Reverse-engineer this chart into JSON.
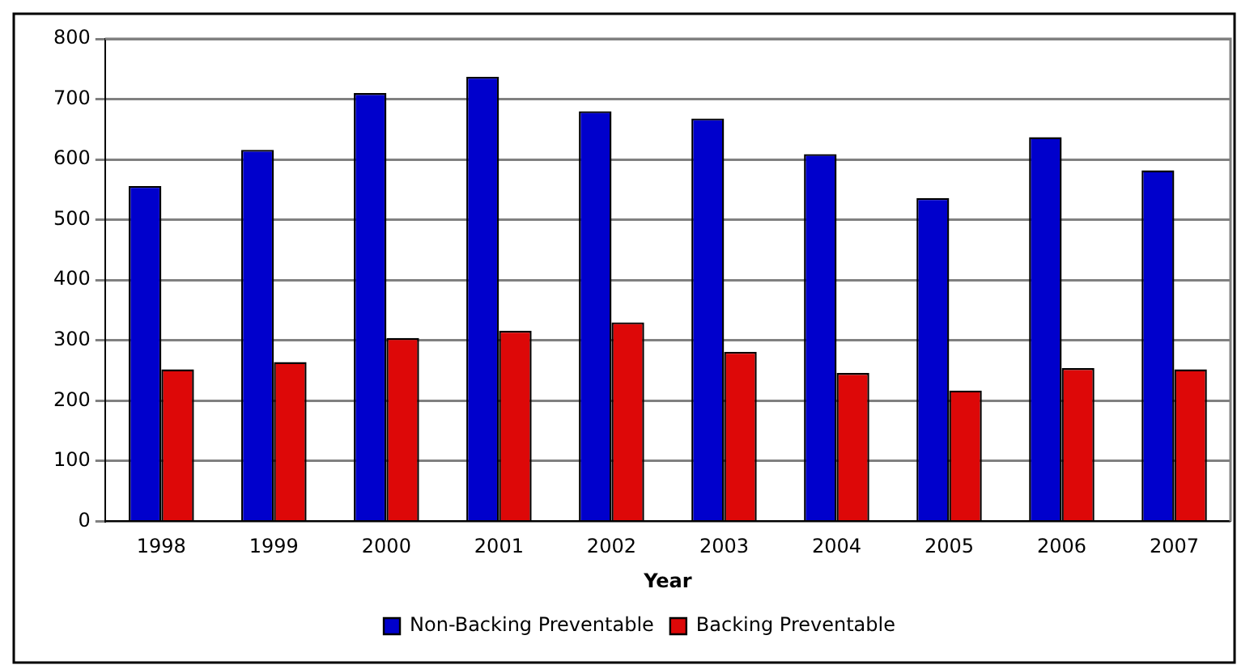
{
  "chart_data": {
    "type": "bar",
    "xlabel": "Year",
    "categories": [
      "1998",
      "1999",
      "2000",
      "2001",
      "2002",
      "2003",
      "2004",
      "2005",
      "2006",
      "2007"
    ],
    "series": [
      {
        "name": "Non-Backing Preventable",
        "color": "#0000cc",
        "values": [
          556,
          616,
          710,
          737,
          680,
          668,
          609,
          536,
          637,
          582
        ]
      },
      {
        "name": "Backing Preventable",
        "color": "#dd0808",
        "values": [
          252,
          264,
          304,
          316,
          330,
          281,
          246,
          217,
          254,
          252
        ]
      }
    ],
    "ylim": [
      0,
      800
    ],
    "yticks": [
      0,
      100,
      200,
      300,
      400,
      500,
      600,
      700,
      800
    ],
    "grid": "y",
    "legend": "bottom"
  }
}
